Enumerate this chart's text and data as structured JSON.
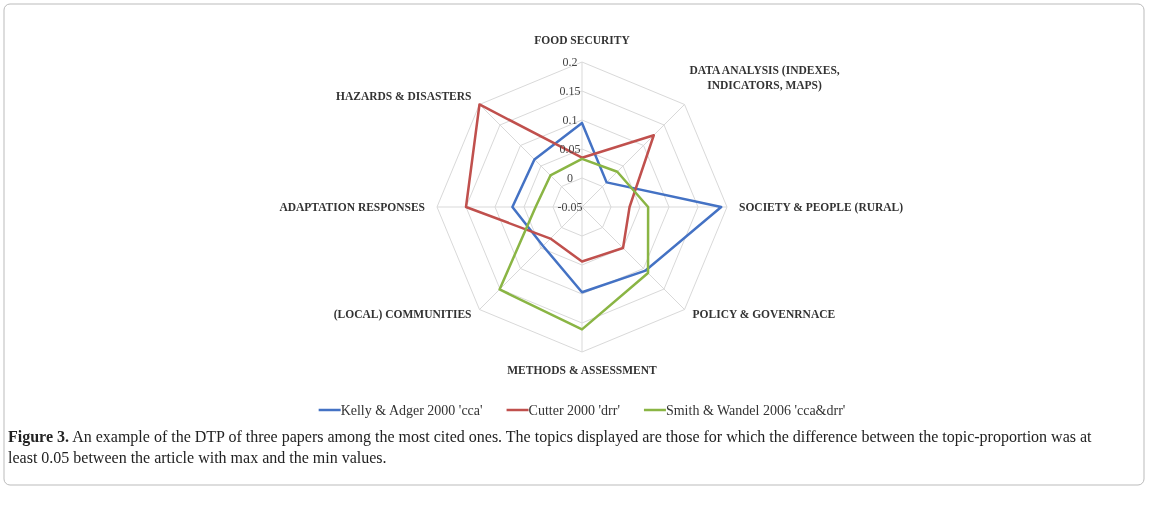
{
  "chart_data": {
    "type": "radar",
    "categories": [
      "FOOD SECURITY",
      "DATA ANALYSIS (INDEXES, INDICATORS, MAPS)",
      "SOCIETY & PEOPLE (RURAL)",
      "POLICY & GOVENRNACE",
      "METHODS & ASSESSMENT",
      "(LOCAL) COMMUNITIES",
      "ADAPTATION RESPONSES",
      "HAZARDS & DISASTERS"
    ],
    "series": [
      {
        "name": "Kelly & Adger 2000 'cca'",
        "color": "#4472c4",
        "values": [
          0.095,
          0.01,
          0.19,
          0.105,
          0.097,
          0.045,
          0.07,
          0.066
        ]
      },
      {
        "name": "Cutter 2000 'drr'",
        "color": "#c0504d",
        "values": [
          0.035,
          0.125,
          0.032,
          0.05,
          0.044,
          0.027,
          0.15,
          0.2
        ]
      },
      {
        "name": "Smith & Wandel 2006 'cca&drr'",
        "color": "#8ab544",
        "values": [
          0.033,
          0.036,
          0.064,
          0.111,
          0.161,
          0.151,
          0.03,
          0.027
        ]
      }
    ],
    "ylim": [
      -0.05,
      0.2
    ],
    "yticks": [
      -0.05,
      0,
      0.05,
      0.1,
      0.15,
      0.2
    ],
    "grid": true,
    "legend": "bottom",
    "marker": "none",
    "line_style": "solid",
    "annotations": [
      "Figure 3. An example of the DTP of three papers among the most cited ones. The topics displayed are those for which the difference between the topic-proportion was at least 0.05 between the article with max and the min values."
    ]
  }
}
